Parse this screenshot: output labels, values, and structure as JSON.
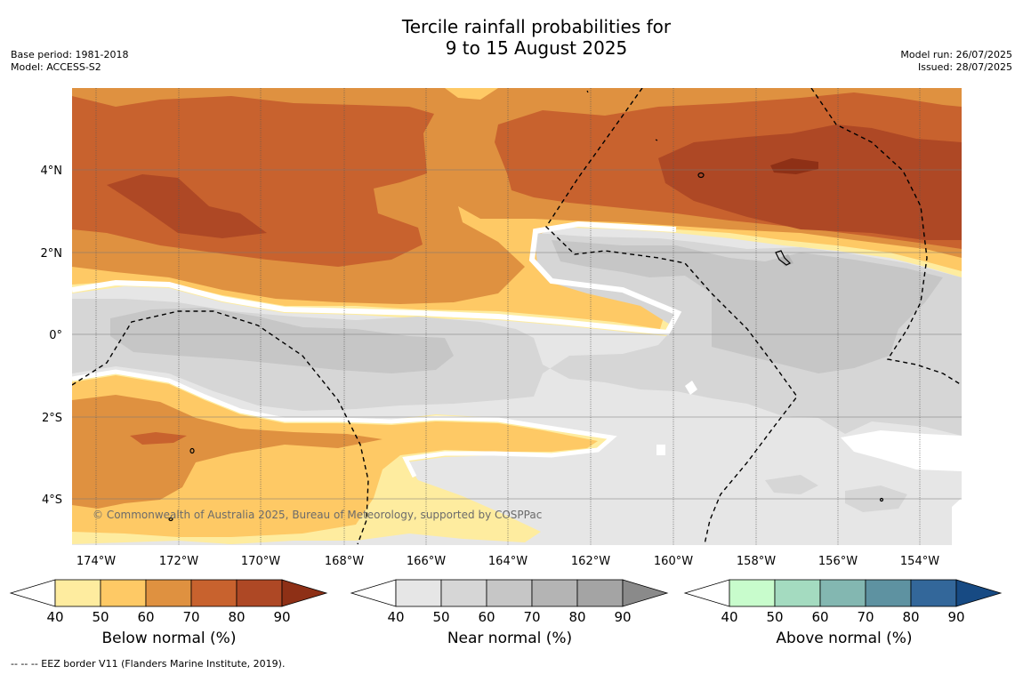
{
  "title": {
    "line1": "Tercile rainfall probabilities for",
    "line2": "9 to 15 August 2025"
  },
  "meta_left": {
    "base_period": "Base period: 1981-2018",
    "model": "Model: ACCESS-S2"
  },
  "meta_right": {
    "model_run": "Model run: 26/07/2025",
    "issued": "Issued: 28/07/2025"
  },
  "map": {
    "lat_labels": [
      "4°N",
      "2°N",
      "0°",
      "2°S",
      "4°S"
    ],
    "lon_labels": [
      "174°W",
      "172°W",
      "170°W",
      "168°W",
      "166°W",
      "164°W",
      "162°W",
      "160°W",
      "158°W",
      "156°W",
      "154°W"
    ],
    "copyright": "© Commonwealth of Australia 2025, Bureau of Meteorology, supported by COSPPac"
  },
  "colorbars": [
    {
      "label": "Below normal (%)",
      "ticks": [
        "40",
        "50",
        "60",
        "70",
        "80",
        "90"
      ],
      "colors": [
        "#ffffff",
        "#feec9f",
        "#fec965",
        "#df9140",
        "#c8622e",
        "#ae4825",
        "#8e3016"
      ]
    },
    {
      "label": "Near normal (%)",
      "ticks": [
        "40",
        "50",
        "60",
        "70",
        "80",
        "90"
      ],
      "colors": [
        "#ffffff",
        "#e6e6e6",
        "#d6d6d6",
        "#c6c6c6",
        "#b4b4b4",
        "#a4a4a4",
        "#8a8a8a"
      ]
    },
    {
      "label": "Above normal (%)",
      "ticks": [
        "40",
        "50",
        "60",
        "70",
        "80",
        "90"
      ],
      "colors": [
        "#ffffff",
        "#c8fccc",
        "#a4dbc0",
        "#83b7b1",
        "#5e92a1",
        "#33679a",
        "#174a83"
      ]
    }
  ],
  "footnote": "--  --  -- EEZ border V11 (Flanders Marine Institute, 2019)."
}
